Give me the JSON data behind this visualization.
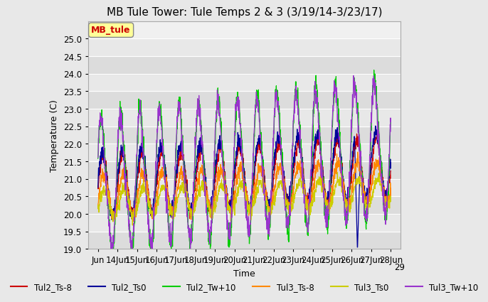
{
  "title": "MB Tule Tower: Tule Temps 2 & 3 (3/19/14-3/23/17)",
  "ylabel": "Temperature (C)",
  "xlabel": "Time",
  "ylim": [
    19.0,
    25.5
  ],
  "yticks": [
    19.0,
    19.5,
    20.0,
    20.5,
    21.0,
    21.5,
    22.0,
    22.5,
    23.0,
    23.5,
    24.0,
    24.5,
    25.0
  ],
  "xlim": [
    -0.5,
    15.5
  ],
  "annotation_text": "MB_tule",
  "annotation_color": "#cc0000",
  "annotation_bg": "#ffff99",
  "bg_color": "#e8e8e8",
  "plot_bg_color": "#f0f0f0",
  "lines": [
    {
      "label": "Tul2_Ts-8",
      "color": "#cc0000"
    },
    {
      "label": "Tul2_Ts0",
      "color": "#000099"
    },
    {
      "label": "Tul2_Tw+10",
      "color": "#00cc00"
    },
    {
      "label": "Tul3_Ts-8",
      "color": "#ff8800"
    },
    {
      "label": "Tul3_Ts0",
      "color": "#cccc00"
    },
    {
      "label": "Tul3_Tw+10",
      "color": "#9933cc"
    }
  ],
  "grid_color": "#ffffff",
  "title_fontsize": 11,
  "axis_fontsize": 9,
  "tick_fontsize": 8.5,
  "legend_fontsize": 8.5
}
